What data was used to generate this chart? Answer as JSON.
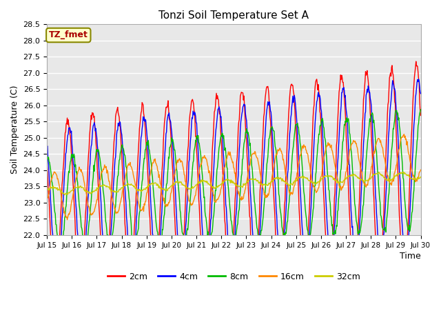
{
  "title": "Tonzi Soil Temperature Set A",
  "xlabel": "Time",
  "ylabel": "Soil Temperature (C)",
  "ylim": [
    22.0,
    28.5
  ],
  "annotation_text": "TZ_fmet",
  "annotation_color": "#aa0000",
  "annotation_bg": "#ffffcc",
  "annotation_border": "#888800",
  "series_colors": [
    "#ff0000",
    "#0000ff",
    "#00bb00",
    "#ff8800",
    "#cccc00"
  ],
  "series_labels": [
    "2cm",
    "4cm",
    "8cm",
    "16cm",
    "32cm"
  ],
  "x_tick_labels": [
    "Jul 15",
    "Jul 16",
    "Jul 17",
    "Jul 18",
    "Jul 19",
    "Jul 20",
    "Jul 21",
    "Jul 22",
    "Jul 23",
    "Jul 24",
    "Jul 25",
    "Jul 26",
    "Jul 27",
    "Jul 28",
    "Jul 29",
    "Jul 30"
  ],
  "background_color": "#e8e8e8",
  "grid_color": "#ffffff",
  "linewidth": 1.0,
  "n_days": 15,
  "n_per_day": 48
}
